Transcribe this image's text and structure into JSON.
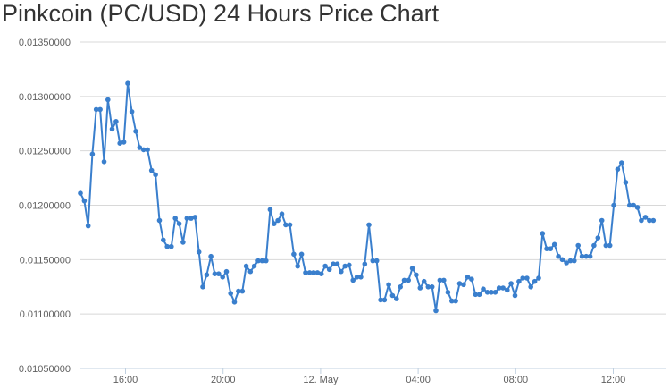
{
  "chart_data": {
    "type": "line",
    "title": "Pinkcoin (PC/USD) 24 Hours Price Chart",
    "xlabel": "",
    "ylabel": "",
    "ylim": [
      0.0105,
      0.0135
    ],
    "y_ticks": [
      "0.01050000",
      "0.01100000",
      "0.01150000",
      "0.01200000",
      "0.01250000",
      "0.01300000",
      "0.01350000"
    ],
    "x_ticks": [
      {
        "label": "16:00",
        "hour": 16
      },
      {
        "label": "20:00",
        "hour": 20
      },
      {
        "label": "12. May",
        "hour": 24
      },
      {
        "label": "04:00",
        "hour": 28
      },
      {
        "label": "08:00",
        "hour": 32
      },
      {
        "label": "12:00",
        "hour": 36
      }
    ],
    "x_range_hours": [
      14.15,
      38.45
    ],
    "grid": "horizontal",
    "line_color": "#3a7fcd",
    "series": [
      {
        "name": "",
        "points": [
          [
            14.15,
            0.01211
          ],
          [
            14.31,
            0.01204
          ],
          [
            14.47,
            0.01181
          ],
          [
            14.64,
            0.01247
          ],
          [
            14.8,
            0.01288
          ],
          [
            14.96,
            0.01288
          ],
          [
            15.12,
            0.0124
          ],
          [
            15.28,
            0.01297
          ],
          [
            15.45,
            0.0127
          ],
          [
            15.61,
            0.01277
          ],
          [
            15.77,
            0.01257
          ],
          [
            15.93,
            0.01258
          ],
          [
            16.09,
            0.01312
          ],
          [
            16.26,
            0.01286
          ],
          [
            16.42,
            0.01268
          ],
          [
            16.58,
            0.01253
          ],
          [
            16.74,
            0.01251
          ],
          [
            16.9,
            0.01251
          ],
          [
            17.07,
            0.01232
          ],
          [
            17.23,
            0.01228
          ],
          [
            17.39,
            0.01186
          ],
          [
            17.55,
            0.01168
          ],
          [
            17.71,
            0.01162
          ],
          [
            17.88,
            0.01162
          ],
          [
            18.04,
            0.01188
          ],
          [
            18.2,
            0.01183
          ],
          [
            18.36,
            0.01166
          ],
          [
            18.52,
            0.01188
          ],
          [
            18.69,
            0.01188
          ],
          [
            18.85,
            0.01189
          ],
          [
            19.01,
            0.01157
          ],
          [
            19.17,
            0.01125
          ],
          [
            19.33,
            0.01136
          ],
          [
            19.5,
            0.01153
          ],
          [
            19.66,
            0.01137
          ],
          [
            19.82,
            0.01137
          ],
          [
            19.98,
            0.01134
          ],
          [
            20.14,
            0.01139
          ],
          [
            20.31,
            0.01119
          ],
          [
            20.47,
            0.01111
          ],
          [
            20.63,
            0.01121
          ],
          [
            20.79,
            0.01121
          ],
          [
            20.95,
            0.01144
          ],
          [
            21.12,
            0.01139
          ],
          [
            21.28,
            0.01144
          ],
          [
            21.44,
            0.01149
          ],
          [
            21.6,
            0.01149
          ],
          [
            21.76,
            0.01149
          ],
          [
            21.93,
            0.01196
          ],
          [
            22.09,
            0.01183
          ],
          [
            22.25,
            0.01186
          ],
          [
            22.41,
            0.01192
          ],
          [
            22.57,
            0.01182
          ],
          [
            22.74,
            0.01182
          ],
          [
            22.9,
            0.01155
          ],
          [
            23.06,
            0.01144
          ],
          [
            23.22,
            0.01155
          ],
          [
            23.38,
            0.01138
          ],
          [
            23.55,
            0.01138
          ],
          [
            23.71,
            0.01138
          ],
          [
            23.87,
            0.01138
          ],
          [
            24.03,
            0.01137
          ],
          [
            24.19,
            0.01144
          ],
          [
            24.36,
            0.01141
          ],
          [
            24.52,
            0.01146
          ],
          [
            24.68,
            0.01146
          ],
          [
            24.84,
            0.01139
          ],
          [
            25.0,
            0.01144
          ],
          [
            25.17,
            0.01145
          ],
          [
            25.33,
            0.01131
          ],
          [
            25.49,
            0.01134
          ],
          [
            25.65,
            0.01134
          ],
          [
            25.81,
            0.01146
          ],
          [
            25.98,
            0.01182
          ],
          [
            26.14,
            0.01149
          ],
          [
            26.3,
            0.01149
          ],
          [
            26.46,
            0.01113
          ],
          [
            26.62,
            0.01113
          ],
          [
            26.79,
            0.01127
          ],
          [
            26.95,
            0.01117
          ],
          [
            27.11,
            0.01114
          ],
          [
            27.27,
            0.01125
          ],
          [
            27.43,
            0.01131
          ],
          [
            27.6,
            0.01131
          ],
          [
            27.76,
            0.01142
          ],
          [
            27.92,
            0.01136
          ],
          [
            28.08,
            0.01124
          ],
          [
            28.24,
            0.0113
          ],
          [
            28.41,
            0.01125
          ],
          [
            28.57,
            0.01125
          ],
          [
            28.73,
            0.01103
          ],
          [
            28.89,
            0.01131
          ],
          [
            29.05,
            0.01131
          ],
          [
            29.22,
            0.0112
          ],
          [
            29.38,
            0.01112
          ],
          [
            29.54,
            0.01112
          ],
          [
            29.7,
            0.01128
          ],
          [
            29.86,
            0.01127
          ],
          [
            30.03,
            0.01134
          ],
          [
            30.19,
            0.01132
          ],
          [
            30.35,
            0.01118
          ],
          [
            30.51,
            0.01118
          ],
          [
            30.67,
            0.01123
          ],
          [
            30.84,
            0.0112
          ],
          [
            31.0,
            0.0112
          ],
          [
            31.16,
            0.0112
          ],
          [
            31.32,
            0.01124
          ],
          [
            31.48,
            0.01124
          ],
          [
            31.65,
            0.01122
          ],
          [
            31.81,
            0.01128
          ],
          [
            31.97,
            0.01117
          ],
          [
            32.13,
            0.0113
          ],
          [
            32.29,
            0.01133
          ],
          [
            32.46,
            0.01133
          ],
          [
            32.62,
            0.01125
          ],
          [
            32.78,
            0.0113
          ],
          [
            32.94,
            0.01133
          ],
          [
            33.1,
            0.01174
          ],
          [
            33.27,
            0.0116
          ],
          [
            33.43,
            0.0116
          ],
          [
            33.59,
            0.01164
          ],
          [
            33.75,
            0.01153
          ],
          [
            33.91,
            0.0115
          ],
          [
            34.08,
            0.01147
          ],
          [
            34.24,
            0.01149
          ],
          [
            34.4,
            0.01149
          ],
          [
            34.56,
            0.01163
          ],
          [
            34.72,
            0.01153
          ],
          [
            34.89,
            0.01153
          ],
          [
            35.05,
            0.01153
          ],
          [
            35.21,
            0.01163
          ],
          [
            35.37,
            0.0117
          ],
          [
            35.53,
            0.01186
          ],
          [
            35.7,
            0.01163
          ],
          [
            35.86,
            0.01163
          ],
          [
            36.02,
            0.012
          ],
          [
            36.18,
            0.01233
          ],
          [
            36.34,
            0.01239
          ],
          [
            36.51,
            0.01221
          ],
          [
            36.67,
            0.012
          ],
          [
            36.83,
            0.012
          ],
          [
            36.99,
            0.01198
          ],
          [
            37.15,
            0.01186
          ],
          [
            37.32,
            0.01189
          ],
          [
            37.48,
            0.01186
          ],
          [
            37.64,
            0.01186
          ]
        ]
      }
    ]
  }
}
